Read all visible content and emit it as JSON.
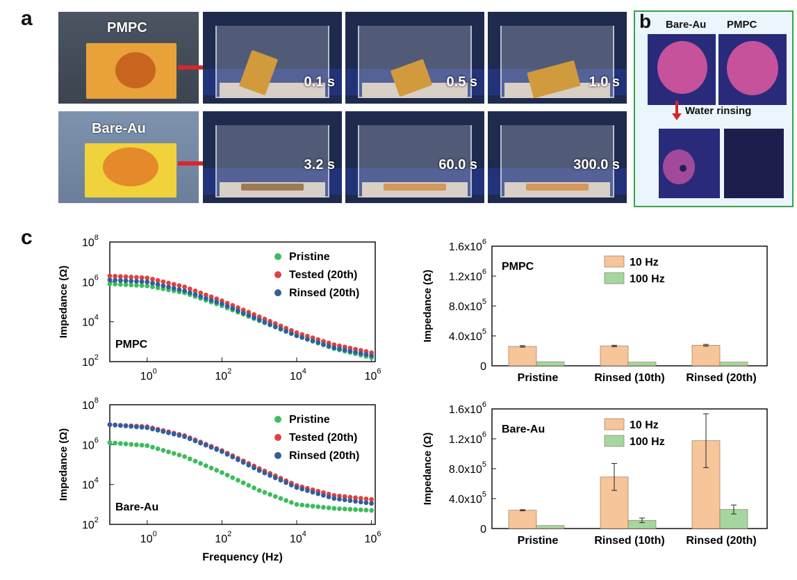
{
  "panel_labels": {
    "a": "a",
    "b": "b",
    "c": "c"
  },
  "panel_a": {
    "rows": [
      {
        "sample": "PMPC",
        "times": [
          "0.1 s",
          "0.5 s",
          "1.0 s"
        ]
      },
      {
        "sample": "Bare-Au",
        "times": [
          "3.2 s",
          "60.0 s",
          "300.0 s"
        ]
      }
    ]
  },
  "panel_b": {
    "left_label": "Bare-Au",
    "right_label": "PMPC",
    "step_label": "Water rinsing"
  },
  "colors": {
    "pristine": "#3cbd5c",
    "tested": "#e0413f",
    "rinsed": "#2f5f9e",
    "bar_10hz": "#f6c59a",
    "bar_100hz": "#a5d6a0",
    "frame_green": "#38a24a",
    "arrow_red": "#d8262a"
  },
  "chart_data": [
    {
      "type": "scatter",
      "scale": "log-log",
      "corner_label": "PMPC",
      "ylabel": "Impedance (Ω)",
      "xlabel": "",
      "xticks": [
        "10",
        "10",
        "10",
        "10"
      ],
      "xtick_exp": [
        "0",
        "2",
        "4",
        "6"
      ],
      "yticks": [
        "10",
        "10",
        "10",
        "10"
      ],
      "ytick_exp": [
        "2",
        "4",
        "6",
        "8"
      ],
      "xlim_log10": [
        -1.0,
        6.1
      ],
      "ylim_log10": [
        2.0,
        8.0
      ],
      "legend": [
        "Pristine",
        "Tested (20th)",
        "Rinsed (20th)"
      ],
      "series": [
        {
          "name": "Pristine",
          "x_log10": [
            -1,
            0,
            1,
            2,
            3,
            4,
            5,
            6
          ],
          "y_log10": [
            5.9,
            5.8,
            5.45,
            4.8,
            4.05,
            3.3,
            2.65,
            2.2
          ]
        },
        {
          "name": "Tested (20th)",
          "x_log10": [
            -1,
            0,
            1,
            2,
            3,
            4,
            5,
            6
          ],
          "y_log10": [
            6.3,
            6.2,
            5.75,
            5.05,
            4.25,
            3.45,
            2.85,
            2.45
          ]
        },
        {
          "name": "Rinsed (20th)",
          "x_log10": [
            -1,
            0,
            1,
            2,
            3,
            4,
            5,
            6
          ],
          "y_log10": [
            6.1,
            6.0,
            5.55,
            4.9,
            4.1,
            3.3,
            2.7,
            2.3
          ]
        }
      ]
    },
    {
      "type": "scatter",
      "scale": "log-log",
      "corner_label": "Bare-Au",
      "ylabel": "Impedance (Ω)",
      "xlabel": "Frequency (Hz)",
      "xticks": [
        "10",
        "10",
        "10",
        "10"
      ],
      "xtick_exp": [
        "0",
        "2",
        "4",
        "6"
      ],
      "yticks": [
        "10",
        "10",
        "10",
        "10"
      ],
      "ytick_exp": [
        "2",
        "4",
        "6",
        "8"
      ],
      "xlim_log10": [
        -1.0,
        6.1
      ],
      "ylim_log10": [
        2.0,
        8.0
      ],
      "legend": [
        "Pristine",
        "Tested (20th)",
        "Rinsed (20th)"
      ],
      "series": [
        {
          "name": "Pristine",
          "x_log10": [
            -1,
            0,
            1,
            2,
            3,
            4,
            5,
            6
          ],
          "y_log10": [
            6.1,
            5.95,
            5.4,
            4.6,
            3.7,
            3.0,
            2.8,
            2.7
          ]
        },
        {
          "name": "Tested (20th)",
          "x_log10": [
            -1,
            0,
            1,
            2,
            3,
            4,
            5,
            6
          ],
          "y_log10": [
            7.0,
            6.9,
            6.45,
            5.7,
            4.8,
            3.95,
            3.45,
            3.25
          ]
        },
        {
          "name": "Rinsed (20th)",
          "x_log10": [
            -1,
            0,
            1,
            2,
            3,
            4,
            5,
            6
          ],
          "y_log10": [
            7.0,
            6.85,
            6.4,
            5.65,
            4.7,
            3.85,
            3.3,
            3.05
          ]
        }
      ]
    },
    {
      "type": "bar",
      "corner_label": "PMPC",
      "ylabel": "Impedance (Ω)",
      "categories": [
        "Pristine",
        "Rinsed (10th)",
        "Rinsed (20th)"
      ],
      "yticks": [
        [
          "0",
          ""
        ],
        [
          "4.0x10",
          "5"
        ],
        [
          "8.0x10",
          "5"
        ],
        [
          "1.2x10",
          "6"
        ],
        [
          "1.6x10",
          "6"
        ]
      ],
      "ylim": [
        0,
        1600000
      ],
      "legend": [
        "10 Hz",
        "100 Hz"
      ],
      "series": [
        {
          "name": "10 Hz",
          "values": [
            260000,
            265000,
            275000
          ],
          "errors": [
            10000,
            10000,
            12000
          ]
        },
        {
          "name": "100 Hz",
          "values": [
            55000,
            50000,
            50000
          ],
          "errors": [
            0,
            0,
            0
          ]
        }
      ]
    },
    {
      "type": "bar",
      "corner_label": "Bare-Au",
      "ylabel": "Impedance (Ω)",
      "categories": [
        "Pristine",
        "Rinsed (10th)",
        "Rinsed (20th)"
      ],
      "yticks": [
        [
          "0",
          ""
        ],
        [
          "4.0x10",
          "5"
        ],
        [
          "8.0x10",
          "5"
        ],
        [
          "1.2x10",
          "6"
        ],
        [
          "1.6x10",
          "6"
        ]
      ],
      "ylim": [
        0,
        1600000
      ],
      "legend": [
        "10 Hz",
        "100 Hz"
      ],
      "series": [
        {
          "name": "10 Hz",
          "values": [
            245000,
            690000,
            1175000
          ],
          "errors": [
            8000,
            180000,
            360000
          ]
        },
        {
          "name": "100 Hz",
          "values": [
            40000,
            110000,
            255000
          ],
          "errors": [
            0,
            30000,
            60000
          ]
        }
      ]
    }
  ]
}
